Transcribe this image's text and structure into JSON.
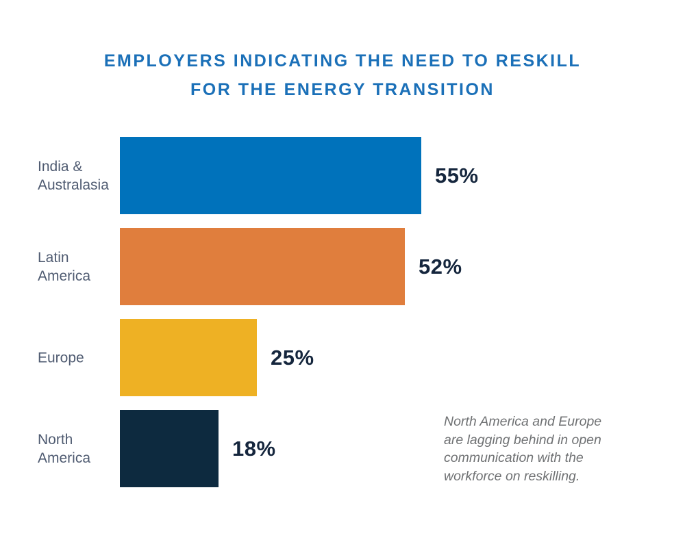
{
  "title": {
    "line1": "EMPLOYERS INDICATING THE NEED TO RESKILL",
    "line2": "FOR THE ENERGY TRANSITION"
  },
  "chart_data": {
    "type": "bar",
    "orientation": "horizontal",
    "title": "EMPLOYERS INDICATING THE NEED TO RESKILL FOR THE ENERGY TRANSITION",
    "categories": [
      "India & Australasia",
      "Latin America",
      "Europe",
      "North America"
    ],
    "values": [
      55,
      52,
      25,
      18
    ],
    "value_labels": [
      "55%",
      "52%",
      "25%",
      "18%"
    ],
    "bar_colors": [
      "#0072BB",
      "#E07E3D",
      "#EEB124",
      "#0D2A3F"
    ],
    "xlabel": "",
    "ylabel": "",
    "axes_shown": false,
    "grid": false,
    "legend": "none",
    "value_label_position": "right-of-bar",
    "annotation": "North America and Europe are lagging behind in open communication with the workforce on reskilling."
  },
  "display": {
    "category_lines": [
      [
        "India &",
        "Australasia"
      ],
      [
        "Latin",
        "America"
      ],
      [
        "Europe"
      ],
      [
        "North",
        "America"
      ]
    ],
    "annotation_lines": [
      "North America and Europe",
      "are lagging behind in open",
      "communication with the",
      "workforce on reskilling."
    ]
  },
  "colors": {
    "title_text": "#1B70B8",
    "category_label_text": "#4F5B71",
    "value_label_text": "#15263D",
    "annotation_text": "#6F7173",
    "background": "#ffffff"
  }
}
